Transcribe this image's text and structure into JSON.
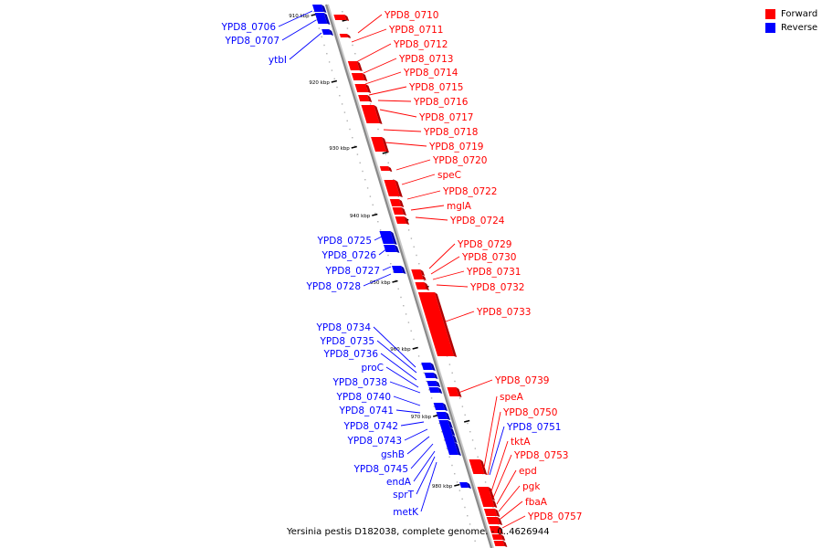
{
  "legend": {
    "forward_label": "Forward",
    "reverse_label": "Reverse",
    "forward_color": "#ff0000",
    "reverse_color": "#0000ff"
  },
  "caption": "Yersinia pestis D182038, complete genome. - 0..4626944",
  "scale_labels": [
    "910 kbp",
    "920 kbp",
    "930 kbp",
    "940 kbp",
    "950 kbp",
    "960 kbp",
    "970 kbp",
    "980 kbp"
  ],
  "forward_genes": [
    "YPD8_0710",
    "YPD8_0711",
    "YPD8_0712",
    "YPD8_0713",
    "YPD8_0714",
    "YPD8_0715",
    "YPD8_0716",
    "YPD8_0717",
    "YPD8_0718",
    "YPD8_0719",
    "YPD8_0720",
    "speC",
    "YPD8_0722",
    "mglA",
    "YPD8_0724",
    "YPD8_0729",
    "YPD8_0730",
    "YPD8_0731",
    "YPD8_0732",
    "YPD8_0733",
    "YPD8_0739",
    "speA",
    "YPD8_0750",
    "tktA",
    "YPD8_0753",
    "epd",
    "pgk",
    "fbaA",
    "YPD8_0757"
  ],
  "reverse_genes": [
    "YPD8_0706",
    "YPD8_0707",
    "ytbI",
    "YPD8_0725",
    "YPD8_0726",
    "YPD8_0727",
    "YPD8_0728",
    "YPD8_0734",
    "YPD8_0735",
    "YPD8_0736",
    "proC",
    "YPD8_0738",
    "YPD8_0740",
    "YPD8_0741",
    "YPD8_0742",
    "YPD8_0743",
    "gshB",
    "YPD8_0745",
    "endA",
    "sprT",
    "metK",
    "YPD8_0751"
  ]
}
